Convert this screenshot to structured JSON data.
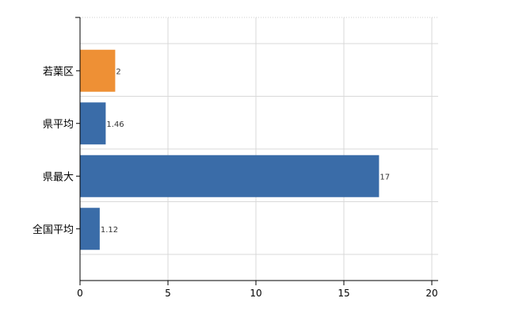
{
  "chart_data": {
    "type": "bar",
    "orientation": "horizontal",
    "categories": [
      "若葉区",
      "県平均",
      "県最大",
      "全国平均"
    ],
    "values": [
      2,
      1.46,
      17,
      1.12
    ],
    "value_labels": [
      "2",
      "1.46",
      "17",
      "1.12"
    ],
    "bar_colors": [
      "#EE9035",
      "#3A6CA8",
      "#3A6CA8",
      "#3A6CA8"
    ],
    "x_ticks": [
      0,
      5,
      10,
      15,
      20
    ],
    "xlim": [
      0,
      20
    ],
    "grid": true,
    "title": "",
    "xlabel": "",
    "ylabel": ""
  }
}
